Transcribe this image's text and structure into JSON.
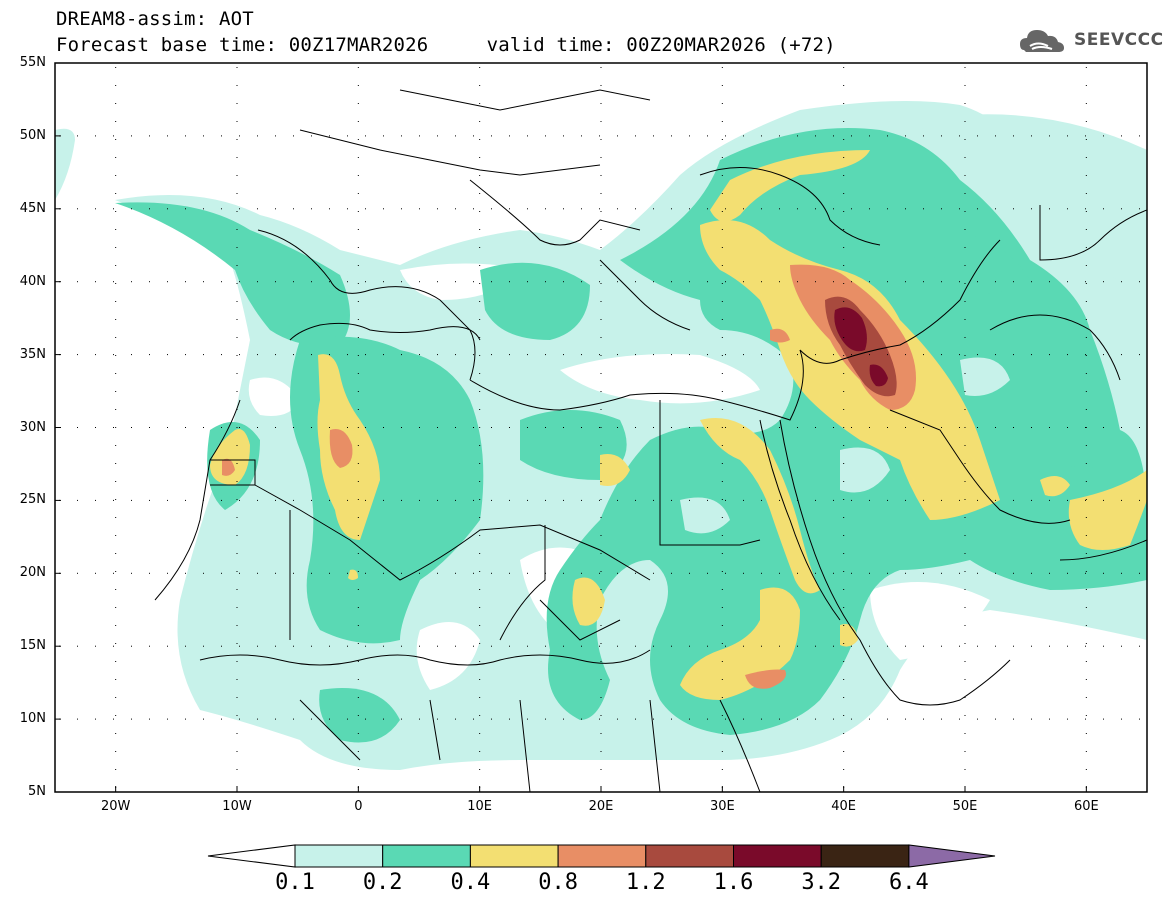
{
  "header": {
    "line1": "DREAM8-assim: AOT",
    "line2": "Forecast base time: 00Z17MAR2026     valid time: 00Z20MAR2026 (+72)",
    "logo_text": "SEEVCCC",
    "logo_icon": "cloud-icon"
  },
  "map": {
    "lat_labels": [
      "55N",
      "50N",
      "45N",
      "40N",
      "35N",
      "30N",
      "25N",
      "20N",
      "15N",
      "10N",
      "5N"
    ],
    "lon_labels": [
      "20W",
      "10W",
      "0",
      "10E",
      "20E",
      "30E",
      "40E",
      "50E",
      "60E"
    ]
  },
  "colorbar": {
    "labels": [
      "0.1",
      "0.2",
      "0.4",
      "0.8",
      "1.2",
      "1.6",
      "3.2",
      "6.4"
    ],
    "colors": [
      "#ffffff",
      "#c7f2ea",
      "#5ad9b4",
      "#f3df72",
      "#e88e65",
      "#a84a3e",
      "#7a0a2a",
      "#3a2414",
      "#8c6aa6"
    ]
  }
}
